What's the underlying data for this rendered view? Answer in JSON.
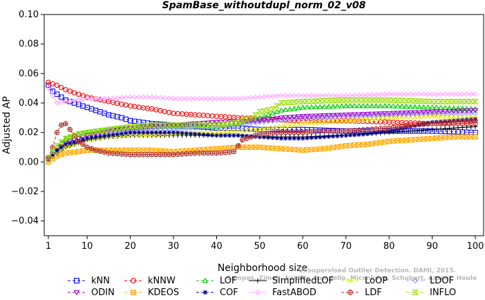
{
  "chart_data": {
    "type": "line",
    "title": "SpamBase_withoutdupl_norm_02_v08",
    "xlabel": "Neighborhood size",
    "ylabel": "Adjusted AP",
    "xlim": [
      1,
      100
    ],
    "ylim": [
      -0.05,
      0.1
    ],
    "x_ticks": [
      1,
      10,
      20,
      30,
      40,
      50,
      60,
      70,
      80,
      90,
      100
    ],
    "y_ticks": [
      -0.04,
      -0.02,
      0.0,
      0.02,
      0.04,
      0.06,
      0.08,
      0.1
    ],
    "y_tick_labels": [
      "−0.04",
      "−0.02",
      "0.00",
      "0.02",
      "0.04",
      "0.06",
      "0.08",
      "0.10"
    ],
    "grid": false,
    "legend_position": "bottom",
    "series": [
      {
        "name": "kNN",
        "color": "#0000ff",
        "marker": "square",
        "dash": "4,3",
        "points": [
          [
            1,
            0.052
          ],
          [
            2,
            0.048
          ],
          [
            3,
            0.046
          ],
          [
            5,
            0.042
          ],
          [
            8,
            0.039
          ],
          [
            10,
            0.037
          ],
          [
            13,
            0.034
          ],
          [
            15,
            0.032
          ],
          [
            18,
            0.03
          ],
          [
            20,
            0.028
          ],
          [
            25,
            0.026
          ],
          [
            30,
            0.025
          ],
          [
            35,
            0.024
          ],
          [
            40,
            0.023
          ],
          [
            45,
            0.023
          ],
          [
            50,
            0.022
          ],
          [
            60,
            0.022
          ],
          [
            70,
            0.021
          ],
          [
            80,
            0.021
          ],
          [
            90,
            0.021
          ],
          [
            100,
            0.02
          ]
        ]
      },
      {
        "name": "kNNW",
        "color": "#ff0000",
        "marker": "circle",
        "dash": "4,3",
        "points": [
          [
            1,
            0.054
          ],
          [
            3,
            0.052
          ],
          [
            5,
            0.049
          ],
          [
            8,
            0.046
          ],
          [
            10,
            0.044
          ],
          [
            15,
            0.041
          ],
          [
            20,
            0.038
          ],
          [
            25,
            0.036
          ],
          [
            30,
            0.033
          ],
          [
            35,
            0.032
          ],
          [
            40,
            0.031
          ],
          [
            45,
            0.03
          ],
          [
            50,
            0.029
          ],
          [
            60,
            0.028
          ],
          [
            70,
            0.028
          ],
          [
            80,
            0.027
          ],
          [
            90,
            0.026
          ],
          [
            100,
            0.026
          ]
        ]
      },
      {
        "name": "LOF",
        "color": "#00cc00",
        "marker": "triangle-up",
        "dash": "4,3",
        "points": [
          [
            1,
            0.003
          ],
          [
            3,
            0.01
          ],
          [
            5,
            0.016
          ],
          [
            8,
            0.019
          ],
          [
            10,
            0.02
          ],
          [
            15,
            0.022
          ],
          [
            20,
            0.023
          ],
          [
            25,
            0.024
          ],
          [
            30,
            0.024
          ],
          [
            35,
            0.024
          ],
          [
            40,
            0.024
          ],
          [
            45,
            0.026
          ],
          [
            50,
            0.03
          ],
          [
            55,
            0.035
          ],
          [
            60,
            0.037
          ],
          [
            70,
            0.038
          ],
          [
            80,
            0.038
          ],
          [
            90,
            0.037
          ],
          [
            100,
            0.036
          ]
        ]
      },
      {
        "name": "SimplifiedLOF",
        "color": "#000000",
        "marker": "plus",
        "dash": "",
        "points": [
          [
            1,
            0.001
          ],
          [
            3,
            0.006
          ],
          [
            5,
            0.01
          ],
          [
            8,
            0.013
          ],
          [
            10,
            0.015
          ],
          [
            15,
            0.017
          ],
          [
            20,
            0.018
          ],
          [
            25,
            0.018
          ],
          [
            30,
            0.018
          ],
          [
            35,
            0.018
          ],
          [
            40,
            0.018
          ],
          [
            45,
            0.018
          ],
          [
            50,
            0.017
          ],
          [
            60,
            0.017
          ],
          [
            70,
            0.018
          ],
          [
            80,
            0.02
          ],
          [
            90,
            0.022
          ],
          [
            100,
            0.024
          ]
        ]
      },
      {
        "name": "LoOP",
        "color": "#e6e600",
        "marker": "x",
        "dash": "4,3",
        "points": [
          [
            1,
            0.001
          ],
          [
            3,
            0.006
          ],
          [
            5,
            0.01
          ],
          [
            8,
            0.013
          ],
          [
            10,
            0.015
          ],
          [
            15,
            0.017
          ],
          [
            20,
            0.018
          ],
          [
            25,
            0.018
          ],
          [
            30,
            0.019
          ],
          [
            40,
            0.02
          ],
          [
            50,
            0.022
          ],
          [
            60,
            0.026
          ],
          [
            70,
            0.028
          ],
          [
            80,
            0.03
          ],
          [
            90,
            0.031
          ],
          [
            100,
            0.03
          ]
        ]
      },
      {
        "name": "LDOF",
        "color": "#9999ff",
        "marker": "diamond",
        "dash": "4,3",
        "points": [
          [
            1,
            0.002
          ],
          [
            3,
            0.008
          ],
          [
            5,
            0.013
          ],
          [
            8,
            0.016
          ],
          [
            10,
            0.018
          ],
          [
            15,
            0.02
          ],
          [
            20,
            0.021
          ],
          [
            25,
            0.022
          ],
          [
            30,
            0.022
          ],
          [
            35,
            0.023
          ],
          [
            40,
            0.024
          ],
          [
            50,
            0.027
          ],
          [
            60,
            0.03
          ],
          [
            70,
            0.031
          ],
          [
            80,
            0.032
          ],
          [
            90,
            0.033
          ],
          [
            100,
            0.033
          ]
        ]
      },
      {
        "name": "ODIN",
        "color": "#9900cc",
        "marker": "triangle-down",
        "dash": "4,3",
        "points": [
          [
            1,
            0.002
          ],
          [
            3,
            0.008
          ],
          [
            5,
            0.013
          ],
          [
            8,
            0.016
          ],
          [
            10,
            0.018
          ],
          [
            15,
            0.021
          ],
          [
            20,
            0.023
          ],
          [
            25,
            0.024
          ],
          [
            30,
            0.025
          ],
          [
            35,
            0.026
          ],
          [
            40,
            0.027
          ],
          [
            50,
            0.028
          ],
          [
            55,
            0.03
          ],
          [
            60,
            0.031
          ],
          [
            70,
            0.032
          ],
          [
            80,
            0.033
          ],
          [
            90,
            0.034
          ],
          [
            100,
            0.035
          ]
        ]
      },
      {
        "name": "KDEOS",
        "color": "#ffaa00",
        "marker": "square-x",
        "dash": "4,3",
        "points": [
          [
            1,
            0.0
          ],
          [
            3,
            0.004
          ],
          [
            5,
            0.006
          ],
          [
            8,
            0.007
          ],
          [
            10,
            0.008
          ],
          [
            15,
            0.008
          ],
          [
            20,
            0.008
          ],
          [
            25,
            0.008
          ],
          [
            30,
            0.007
          ],
          [
            35,
            0.008
          ],
          [
            40,
            0.009
          ],
          [
            45,
            0.01
          ],
          [
            50,
            0.01
          ],
          [
            55,
            0.009
          ],
          [
            60,
            0.008
          ],
          [
            65,
            0.009
          ],
          [
            70,
            0.011
          ],
          [
            75,
            0.012
          ],
          [
            80,
            0.014
          ],
          [
            85,
            0.015
          ],
          [
            90,
            0.016
          ],
          [
            95,
            0.017
          ],
          [
            100,
            0.017
          ]
        ]
      },
      {
        "name": "COF",
        "color": "#000080",
        "marker": "star",
        "dash": "4,3",
        "points": [
          [
            1,
            0.002
          ],
          [
            3,
            0.008
          ],
          [
            5,
            0.012
          ],
          [
            8,
            0.014
          ],
          [
            10,
            0.016
          ],
          [
            15,
            0.018
          ],
          [
            20,
            0.02
          ],
          [
            25,
            0.02
          ],
          [
            30,
            0.02
          ],
          [
            35,
            0.019
          ],
          [
            40,
            0.018
          ],
          [
            45,
            0.018
          ],
          [
            50,
            0.017
          ],
          [
            55,
            0.016
          ],
          [
            60,
            0.016
          ],
          [
            65,
            0.017
          ],
          [
            70,
            0.018
          ],
          [
            75,
            0.019
          ],
          [
            80,
            0.021
          ],
          [
            85,
            0.024
          ],
          [
            90,
            0.027
          ],
          [
            95,
            0.028
          ],
          [
            100,
            0.029
          ]
        ]
      },
      {
        "name": "FastABOD",
        "color": "#ffaaff",
        "marker": "diamond",
        "dash": "",
        "points": [
          [
            1,
            0.05
          ],
          [
            3,
            0.04
          ],
          [
            5,
            0.041
          ],
          [
            8,
            0.042
          ],
          [
            10,
            0.043
          ],
          [
            15,
            0.043
          ],
          [
            20,
            0.044
          ],
          [
            25,
            0.044
          ],
          [
            30,
            0.043
          ],
          [
            35,
            0.043
          ],
          [
            40,
            0.043
          ],
          [
            45,
            0.043
          ],
          [
            50,
            0.044
          ],
          [
            55,
            0.045
          ],
          [
            60,
            0.045
          ],
          [
            70,
            0.045
          ],
          [
            80,
            0.046
          ],
          [
            90,
            0.046
          ],
          [
            100,
            0.046
          ]
        ]
      },
      {
        "name": "LDF",
        "color": "#b03030",
        "marker": "circle-plus",
        "dash": "4,3",
        "points": [
          [
            1,
            0.003
          ],
          [
            2,
            0.01
          ],
          [
            3,
            0.02
          ],
          [
            4,
            0.025
          ],
          [
            5,
            0.026
          ],
          [
            6,
            0.022
          ],
          [
            8,
            0.014
          ],
          [
            10,
            0.01
          ],
          [
            12,
            0.008
          ],
          [
            15,
            0.006
          ],
          [
            20,
            0.005
          ],
          [
            25,
            0.005
          ],
          [
            30,
            0.005
          ],
          [
            35,
            0.006
          ],
          [
            40,
            0.006
          ],
          [
            44,
            0.007
          ],
          [
            46,
            0.015
          ],
          [
            50,
            0.019
          ],
          [
            55,
            0.02
          ],
          [
            60,
            0.02
          ],
          [
            65,
            0.021
          ],
          [
            70,
            0.021
          ],
          [
            75,
            0.022
          ],
          [
            80,
            0.023
          ],
          [
            85,
            0.025
          ],
          [
            90,
            0.026
          ],
          [
            95,
            0.027
          ],
          [
            100,
            0.028
          ]
        ]
      },
      {
        "name": "INFLO",
        "color": "#99dd00",
        "marker": "hourglass",
        "dash": "4,3",
        "points": [
          [
            1,
            0.003
          ],
          [
            3,
            0.011
          ],
          [
            5,
            0.016
          ],
          [
            8,
            0.019
          ],
          [
            10,
            0.02
          ],
          [
            15,
            0.022
          ],
          [
            20,
            0.024
          ],
          [
            25,
            0.025
          ],
          [
            30,
            0.025
          ],
          [
            35,
            0.025
          ],
          [
            40,
            0.025
          ],
          [
            45,
            0.027
          ],
          [
            48,
            0.03
          ],
          [
            50,
            0.034
          ],
          [
            53,
            0.036
          ],
          [
            55,
            0.04
          ],
          [
            60,
            0.041
          ],
          [
            70,
            0.042
          ],
          [
            80,
            0.042
          ],
          [
            90,
            0.041
          ],
          [
            100,
            0.041
          ]
        ]
      }
    ]
  },
  "watermark": {
    "line1": "Unsupervised Outlier Detection. DAMI, 2015.",
    "line2": "Campos, Zimek, Sander, Campello, Micenkova, Schubert, Assent, Houle"
  }
}
